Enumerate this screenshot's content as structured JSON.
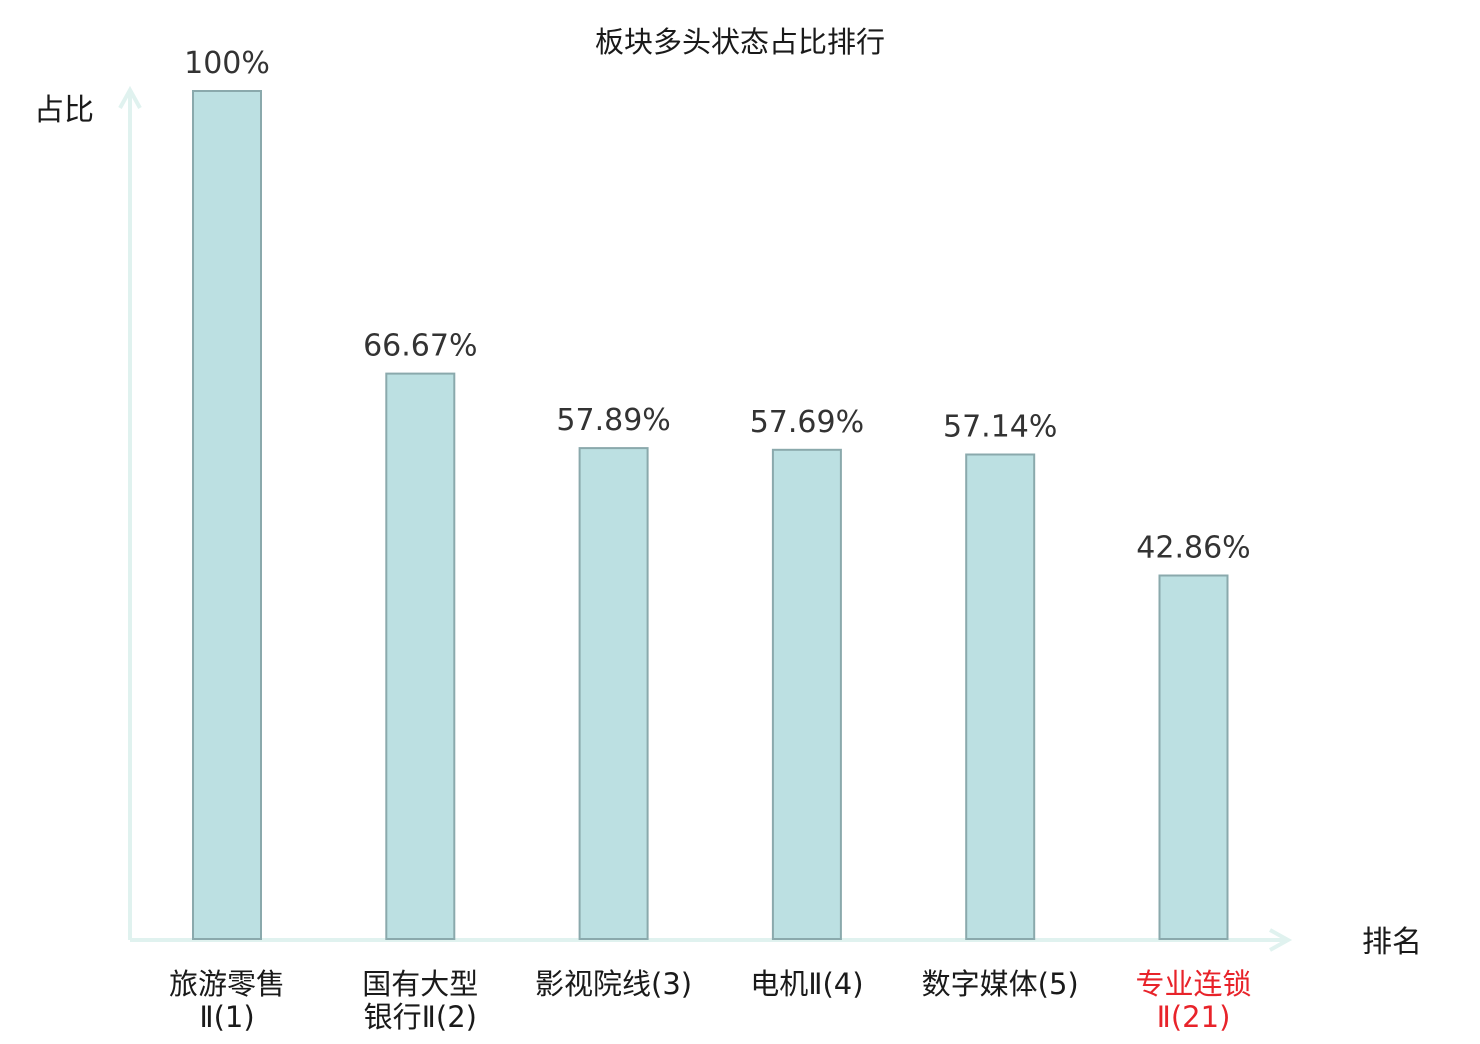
{
  "chart_data": {
    "type": "bar",
    "title": "板块多头状态占比排行",
    "ylabel": "占比",
    "xlabel": "排名",
    "ylim": [
      0,
      100
    ],
    "grid": false,
    "categories": [
      {
        "lines": [
          "旅游零售",
          "Ⅱ(1)"
        ],
        "highlight": false
      },
      {
        "lines": [
          "国有大型",
          "银行Ⅱ(2)"
        ],
        "highlight": false
      },
      {
        "lines": [
          "影视院线(3)"
        ],
        "highlight": false
      },
      {
        "lines": [
          "电机Ⅱ(4)"
        ],
        "highlight": false
      },
      {
        "lines": [
          "数字媒体(5)"
        ],
        "highlight": false
      },
      {
        "lines": [
          "专业连锁",
          "Ⅱ(21)"
        ],
        "highlight": true
      }
    ],
    "values": [
      100,
      66.67,
      57.89,
      57.69,
      57.14,
      42.86
    ],
    "value_labels": [
      "100%",
      "66.67%",
      "57.89%",
      "57.69%",
      "57.14%",
      "42.86%"
    ],
    "colors": {
      "bar_fill": "#bce0e2",
      "bar_stroke": "#8aa9ac",
      "axis": "#e0f2ef",
      "highlight_text": "#e8232a",
      "text": "#1a1a1a"
    }
  }
}
